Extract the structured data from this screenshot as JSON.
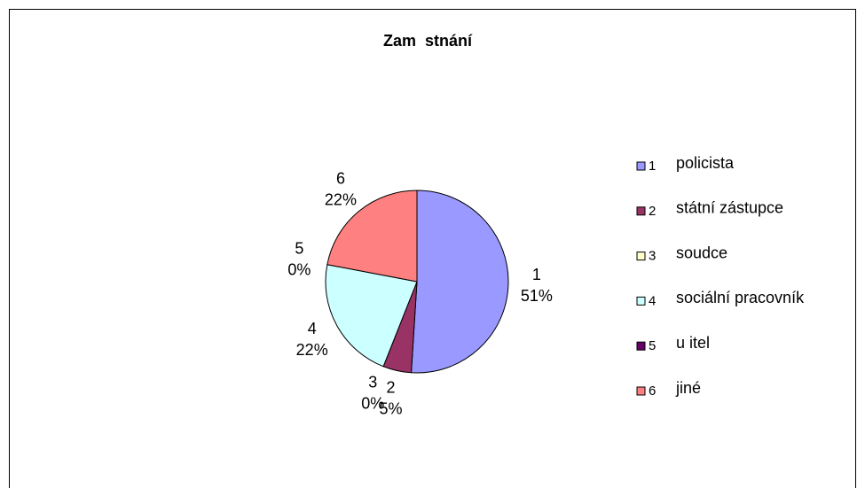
{
  "chart_data": {
    "type": "pie",
    "title": "Zam  stnání",
    "categories": [
      "1",
      "2",
      "3",
      "4",
      "5",
      "6"
    ],
    "category_names": [
      "policista",
      "státní zástupce",
      "soudce",
      "sociální pracovník",
      "u itel",
      "jiné"
    ],
    "values": [
      51,
      5,
      0,
      22,
      0,
      22
    ],
    "value_labels": [
      "51%",
      "5%",
      "0%",
      "22%",
      "0%",
      "22%"
    ],
    "colors": [
      "#9999ff",
      "#993366",
      "#ffffcc",
      "#ccffff",
      "#660066",
      "#ff8080"
    ],
    "legend": "right"
  }
}
